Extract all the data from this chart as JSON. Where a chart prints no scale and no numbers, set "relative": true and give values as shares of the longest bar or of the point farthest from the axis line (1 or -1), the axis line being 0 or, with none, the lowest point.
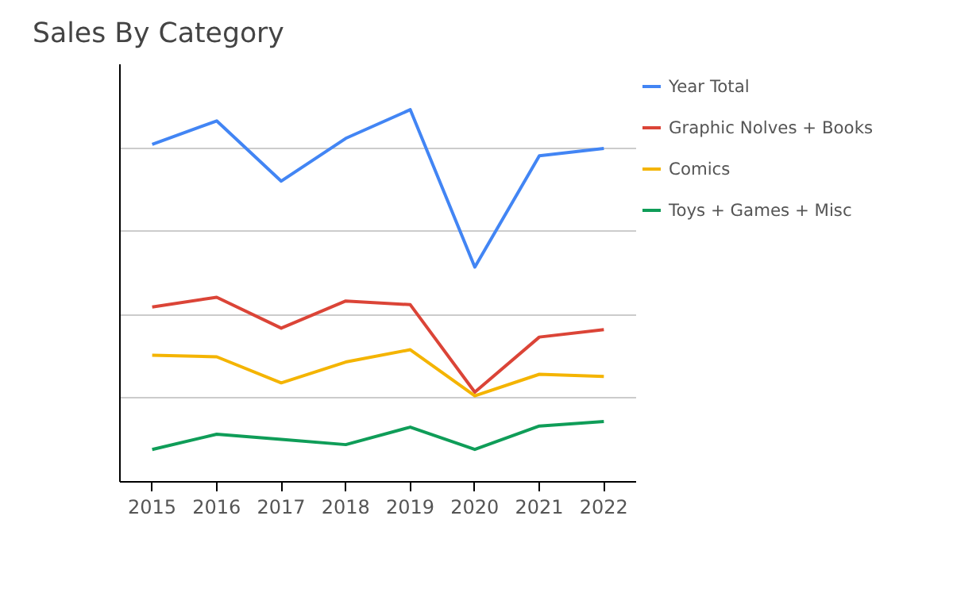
{
  "chart_data": {
    "type": "line",
    "title": "Sales By Category",
    "relative": true,
    "grid": "y",
    "legend": "top right",
    "categories": [
      "2015",
      "2016",
      "2017",
      "2018",
      "2019",
      "2020",
      "2021",
      "2022"
    ],
    "series": [
      {
        "name": "Year Total",
        "color": "#4285f4",
        "values": [
          0.907,
          0.97,
          0.808,
          0.923,
          1,
          0.577,
          0.876,
          0.896
        ]
      },
      {
        "name": "Graphic Nolves + Books",
        "color": "#db4437",
        "values": [
          0.47,
          0.496,
          0.413,
          0.486,
          0.476,
          0.241,
          0.389,
          0.409
        ]
      },
      {
        "name": "Comics",
        "color": "#f4b400",
        "values": [
          0.34,
          0.336,
          0.266,
          0.322,
          0.355,
          0.231,
          0.289,
          0.283
        ]
      },
      {
        "name": "Toys + Games + Misc",
        "color": "#0f9d58",
        "values": [
          0.087,
          0.128,
          0.114,
          0.1,
          0.147,
          0.087,
          0.15,
          0.162
        ]
      }
    ]
  }
}
